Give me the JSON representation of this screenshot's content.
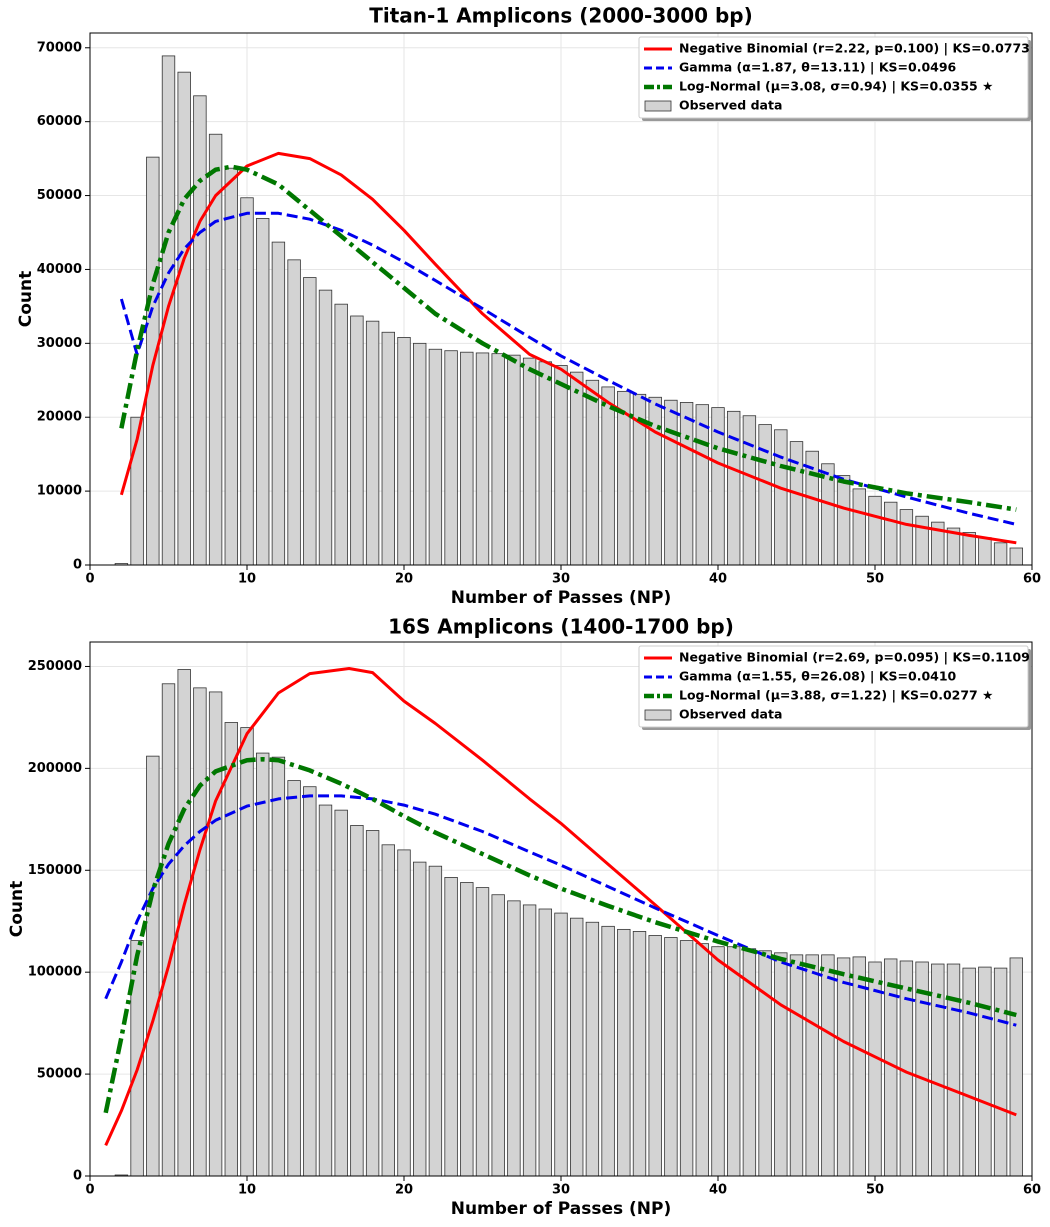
{
  "chart_data": [
    {
      "type": "bar",
      "title": "Titan-1 Amplicons (2000-3000 bp)",
      "x_label": "Number of Passes (NP)",
      "y_label": "Count",
      "xlim": [
        0,
        60
      ],
      "ylim": [
        0,
        72000
      ],
      "xticks": [
        0,
        10,
        20,
        30,
        40,
        50,
        60
      ],
      "yticks": [
        0,
        10000,
        20000,
        30000,
        40000,
        50000,
        60000,
        70000
      ],
      "grid": true,
      "legend": "upper right",
      "series": [
        {
          "name": "Negative Binomial (r=2.22, p=0.100) | KS=0.0773",
          "kind": "line",
          "style": "solid",
          "color": "#ff0000",
          "x": [
            2,
            3,
            4,
            5,
            6,
            7,
            8,
            10,
            12,
            14,
            16,
            18,
            20,
            22,
            25,
            28,
            30,
            33,
            36,
            40,
            44,
            48,
            52,
            56,
            59
          ],
          "values": [
            9500,
            17000,
            27000,
            35000,
            41500,
            46500,
            50000,
            54000,
            55700,
            55000,
            52800,
            49500,
            45300,
            40700,
            34000,
            28500,
            26500,
            22000,
            18000,
            13800,
            10400,
            7700,
            5500,
            4000,
            3000
          ]
        },
        {
          "name": "Gamma (α=1.87, θ=13.11) | KS=0.0496",
          "kind": "line",
          "style": "dashed",
          "color": "#0000ee",
          "x": [
            2,
            3,
            4,
            5,
            6,
            7,
            8,
            10,
            12,
            14,
            16,
            18,
            20,
            22,
            25,
            28,
            30,
            33,
            36,
            40,
            44,
            48,
            52,
            56,
            59
          ],
          "values": [
            36000,
            28500,
            35000,
            39500,
            42800,
            45000,
            46500,
            47600,
            47600,
            46800,
            45300,
            43300,
            41000,
            38500,
            34700,
            30800,
            28300,
            25000,
            21800,
            18000,
            14600,
            11600,
            9200,
            7000,
            5500
          ]
        },
        {
          "name": "Log-Normal (μ=3.08, σ=0.94) | KS=0.0355 ★",
          "kind": "line",
          "style": "dashdot",
          "color": "#007700",
          "x": [
            2,
            3,
            4,
            5,
            6,
            7,
            8,
            9,
            10,
            12,
            14,
            16,
            18,
            20,
            22,
            25,
            28,
            30,
            33,
            36,
            40,
            44,
            48,
            52,
            56,
            59
          ],
          "values": [
            18500,
            29000,
            38000,
            45000,
            49500,
            52000,
            53500,
            53900,
            53500,
            51500,
            48000,
            44500,
            41000,
            37500,
            34000,
            30000,
            26500,
            24500,
            21500,
            18800,
            15800,
            13400,
            11300,
            9700,
            8500,
            7500
          ]
        },
        {
          "name": "Observed data",
          "kind": "bar",
          "color": "#d3d3d3",
          "x": [
            2,
            3,
            4,
            5,
            6,
            7,
            8,
            9,
            10,
            11,
            12,
            13,
            14,
            15,
            16,
            17,
            18,
            19,
            20,
            21,
            22,
            23,
            24,
            25,
            26,
            27,
            28,
            29,
            30,
            31,
            32,
            33,
            34,
            35,
            36,
            37,
            38,
            39,
            40,
            41,
            42,
            43,
            44,
            45,
            46,
            47,
            48,
            49,
            50,
            51,
            52,
            53,
            54,
            55,
            56,
            57,
            58,
            59
          ],
          "values": [
            200,
            20000,
            55200,
            68900,
            66700,
            63500,
            58300,
            53700,
            49700,
            46900,
            43700,
            41300,
            38900,
            37200,
            35300,
            33700,
            33000,
            31500,
            30800,
            30000,
            29200,
            29000,
            28800,
            28700,
            28600,
            28400,
            28000,
            27500,
            27000,
            26100,
            25000,
            24100,
            23500,
            23100,
            22700,
            22300,
            22000,
            21700,
            21300,
            20800,
            20200,
            19000,
            18300,
            16700,
            15400,
            13700,
            12100,
            10300,
            9300,
            8500,
            7500,
            6600,
            5800,
            5000,
            4400,
            3700,
            3000,
            2300
          ]
        }
      ]
    },
    {
      "type": "bar",
      "title": "16S Amplicons (1400-1700 bp)",
      "x_label": "Number of Passes (NP)",
      "y_label": "Count",
      "xlim": [
        0,
        60
      ],
      "ylim": [
        0,
        262000
      ],
      "xticks": [
        0,
        10,
        20,
        30,
        40,
        50,
        60
      ],
      "yticks": [
        0,
        50000,
        100000,
        150000,
        200000,
        250000
      ],
      "grid": true,
      "legend": "upper right",
      "series": [
        {
          "name": "Negative Binomial (r=2.69, p=0.095) | KS=0.1109",
          "kind": "line",
          "style": "solid",
          "color": "#ff0000",
          "x": [
            1,
            2,
            3,
            4,
            5,
            6,
            7,
            8,
            10,
            12,
            14,
            16.5,
            18,
            20,
            22,
            25,
            28,
            30,
            33,
            36,
            40,
            44,
            48,
            52,
            56,
            59
          ],
          "values": [
            15000,
            32000,
            52000,
            76000,
            103000,
            133000,
            160000,
            184000,
            217000,
            237000,
            246500,
            249000,
            247000,
            233000,
            222000,
            204000,
            185000,
            173000,
            153000,
            133000,
            106000,
            84000,
            66000,
            51000,
            39000,
            30000
          ]
        },
        {
          "name": "Gamma (α=1.55, θ=26.08) | KS=0.0410",
          "kind": "line",
          "style": "dashed",
          "color": "#0000ee",
          "x": [
            1,
            2,
            3,
            4,
            5,
            6,
            7,
            8,
            10,
            12,
            14,
            16,
            18,
            20,
            22,
            25,
            28,
            30,
            33,
            36,
            40,
            44,
            48,
            52,
            56,
            59
          ],
          "values": [
            87000,
            105000,
            125000,
            141000,
            153000,
            162000,
            169000,
            174500,
            181500,
            185000,
            186500,
            186500,
            185000,
            182000,
            177500,
            169000,
            159000,
            152500,
            142000,
            131500,
            118000,
            105000,
            95000,
            87000,
            80000,
            74000
          ]
        },
        {
          "name": "Log-Normal (μ=3.88, σ=1.22) | KS=0.0277 ★",
          "kind": "line",
          "style": "dashdot",
          "color": "#007700",
          "x": [
            1,
            2,
            3,
            4,
            5,
            6,
            7,
            8,
            10,
            11,
            12,
            14,
            16,
            18,
            20,
            22,
            25,
            28,
            30,
            33,
            36,
            40,
            44,
            48,
            52,
            56,
            59
          ],
          "values": [
            31000,
            68000,
            108000,
            140000,
            163000,
            180000,
            191500,
            198500,
            204000,
            204500,
            204000,
            199000,
            192500,
            185000,
            176500,
            168500,
            158000,
            147500,
            141000,
            132500,
            124500,
            115000,
            106500,
            99000,
            92000,
            85000,
            79000
          ]
        },
        {
          "name": "Observed data",
          "kind": "bar",
          "color": "#d3d3d3",
          "x": [
            2,
            3,
            4,
            5,
            6,
            7,
            8,
            9,
            10,
            11,
            12,
            13,
            14,
            15,
            16,
            17,
            18,
            19,
            20,
            21,
            22,
            23,
            24,
            25,
            26,
            27,
            28,
            29,
            30,
            31,
            32,
            33,
            34,
            35,
            36,
            37,
            38,
            39,
            40,
            41,
            42,
            43,
            44,
            45,
            46,
            47,
            48,
            49,
            50,
            51,
            52,
            53,
            54,
            55,
            56,
            57,
            58,
            59
          ],
          "values": [
            500,
            115500,
            206000,
            241500,
            248500,
            239500,
            237500,
            222500,
            220000,
            207500,
            205500,
            194000,
            191000,
            182000,
            179500,
            172000,
            169500,
            162500,
            160000,
            154000,
            152000,
            146500,
            144000,
            141500,
            138000,
            135000,
            133000,
            131000,
            129000,
            126500,
            124500,
            122500,
            121000,
            120000,
            118000,
            117000,
            115500,
            114000,
            112500,
            112500,
            111500,
            110500,
            109500,
            108500,
            108500,
            108500,
            107000,
            107500,
            105000,
            106500,
            105500,
            105000,
            104000,
            104000,
            102000,
            102500,
            102000,
            107000
          ]
        }
      ]
    }
  ]
}
